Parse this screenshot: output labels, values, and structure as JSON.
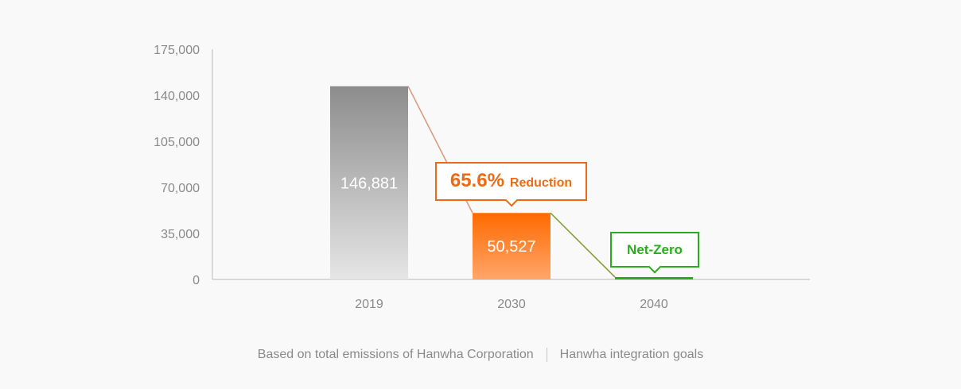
{
  "chart_data": {
    "type": "bar",
    "categories": [
      "2019",
      "2030",
      "2040"
    ],
    "values": [
      146881,
      50527,
      0
    ],
    "value_labels": [
      "146,881",
      "50,527",
      ""
    ],
    "ylim": [
      0,
      175000
    ],
    "yticks": [
      0,
      35000,
      70000,
      105000,
      140000,
      175000
    ],
    "ytick_labels": [
      "0",
      "35,000",
      "70,000",
      "105,000",
      "140,000",
      "175,000"
    ],
    "grid": false,
    "colors": {
      "bar_2019_top": "#8c8c8c",
      "bar_2019_bottom": "#e6e6e6",
      "bar_2030_top": "#ff6a00",
      "bar_2030_bottom": "#ffa66b",
      "bar_2040": "#28ae1d",
      "connector_1": "#d8987a",
      "connector_2": "#7a9c2a",
      "axis": "#b9b9b9"
    },
    "annotations": [
      {
        "value": "65.6%",
        "text": "Reduction",
        "color": "#ee6a12"
      },
      {
        "text": "Net-Zero",
        "color": "#28ae1d"
      }
    ]
  },
  "footnote": {
    "left": "Based on total emissions of Hanwha Corporation",
    "right": "Hanwha integration goals"
  }
}
